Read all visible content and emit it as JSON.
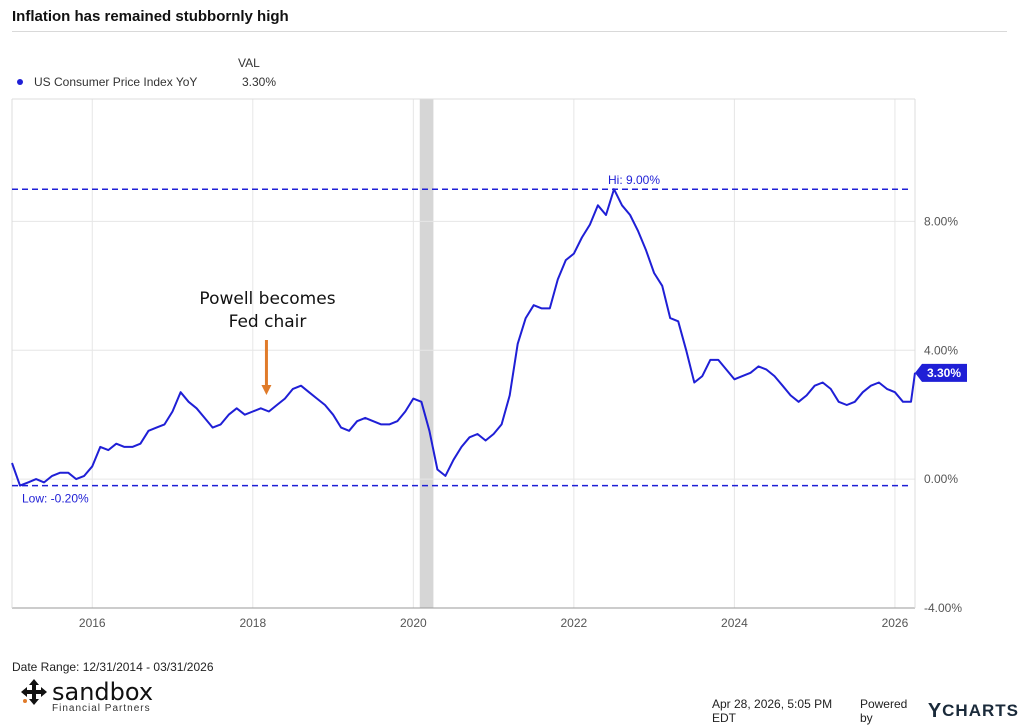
{
  "title": "Inflation has remained stubbornly high",
  "legend": {
    "header": "VAL",
    "series_label": "US Consumer Price Index YoY",
    "series_value": "3.30%"
  },
  "annotation": {
    "line1": "Powell becomes",
    "line2": "Fed chair"
  },
  "footer": {
    "date_range": "Date Range: 12/31/2014 - 03/31/2026",
    "timestamp": "Apr 28, 2026, 5:05 PM EDT",
    "powered_by": "Powered by",
    "ycharts_brand": "CHARTS",
    "ycharts_y": "Y",
    "logo_name": "sandbox",
    "logo_sub": "Financial Partners"
  },
  "colors": {
    "series": "#1f1fd6",
    "annotation_arrow": "#e07b2a",
    "recession": "#d6d6d6",
    "grid": "#e6e6e6"
  },
  "chart_data": {
    "type": "line",
    "title": "Inflation has remained stubbornly high",
    "xlabel": "",
    "ylabel": "",
    "xlim": [
      2015.0,
      2026.25
    ],
    "ylim": [
      -4.0,
      11.8
    ],
    "x_ticks": [
      2016,
      2018,
      2020,
      2022,
      2024,
      2026
    ],
    "x_tick_labels": [
      "2016",
      "2018",
      "2020",
      "2022",
      "2024",
      "2026"
    ],
    "y_ticks": [
      -4,
      0,
      4,
      8
    ],
    "y_tick_labels": [
      "-4.00%",
      "0.00%",
      "4.00%",
      "8.00%"
    ],
    "grid": true,
    "legend_position": "top-left",
    "hi_line": {
      "value": 9.0,
      "label": "Hi: 9.00%"
    },
    "low_line": {
      "value": -0.2,
      "label": "Low: -0.20%"
    },
    "last_value": {
      "value": 3.3,
      "label": "3.30%"
    },
    "recession_band": [
      2020.08,
      2020.25
    ],
    "annotation_x": 2018.17,
    "series": [
      {
        "name": "US Consumer Price Index YoY",
        "x": [
          2015.0,
          2015.1,
          2015.2,
          2015.3,
          2015.4,
          2015.5,
          2015.6,
          2015.7,
          2015.8,
          2015.9,
          2016.0,
          2016.1,
          2016.2,
          2016.3,
          2016.4,
          2016.5,
          2016.6,
          2016.7,
          2016.8,
          2016.9,
          2017.0,
          2017.1,
          2017.2,
          2017.3,
          2017.4,
          2017.5,
          2017.6,
          2017.7,
          2017.8,
          2017.9,
          2018.0,
          2018.1,
          2018.2,
          2018.3,
          2018.4,
          2018.5,
          2018.6,
          2018.7,
          2018.8,
          2018.9,
          2019.0,
          2019.1,
          2019.2,
          2019.3,
          2019.4,
          2019.5,
          2019.6,
          2019.7,
          2019.8,
          2019.9,
          2020.0,
          2020.1,
          2020.2,
          2020.3,
          2020.4,
          2020.5,
          2020.6,
          2020.7,
          2020.8,
          2020.9,
          2021.0,
          2021.1,
          2021.2,
          2021.3,
          2021.4,
          2021.5,
          2021.6,
          2021.7,
          2021.8,
          2021.9,
          2022.0,
          2022.1,
          2022.2,
          2022.3,
          2022.4,
          2022.5,
          2022.6,
          2022.7,
          2022.8,
          2022.9,
          2023.0,
          2023.1,
          2023.2,
          2023.3,
          2023.4,
          2023.5,
          2023.6,
          2023.7,
          2023.8,
          2023.9,
          2024.0,
          2024.1,
          2024.2,
          2024.3,
          2024.4,
          2024.5,
          2024.6,
          2024.7,
          2024.8,
          2024.9,
          2025.0,
          2025.1,
          2025.2,
          2025.3,
          2025.4,
          2025.5,
          2025.6,
          2025.7,
          2025.8,
          2025.9,
          2026.0,
          2026.1,
          2026.2,
          2026.25
        ],
        "values": [
          0.5,
          -0.2,
          -0.1,
          0.0,
          -0.1,
          0.1,
          0.2,
          0.2,
          0.0,
          0.1,
          0.4,
          1.0,
          0.9,
          1.1,
          1.0,
          1.0,
          1.1,
          1.5,
          1.6,
          1.7,
          2.1,
          2.7,
          2.4,
          2.2,
          1.9,
          1.6,
          1.7,
          2.0,
          2.2,
          2.0,
          2.1,
          2.2,
          2.1,
          2.3,
          2.5,
          2.8,
          2.9,
          2.7,
          2.5,
          2.3,
          2.0,
          1.6,
          1.5,
          1.8,
          1.9,
          1.8,
          1.7,
          1.7,
          1.8,
          2.1,
          2.5,
          2.4,
          1.5,
          0.3,
          0.1,
          0.6,
          1.0,
          1.3,
          1.4,
          1.2,
          1.4,
          1.7,
          2.6,
          4.2,
          5.0,
          5.4,
          5.3,
          5.3,
          6.2,
          6.8,
          7.0,
          7.5,
          7.9,
          8.5,
          8.2,
          9.0,
          8.5,
          8.2,
          7.7,
          7.1,
          6.4,
          6.0,
          5.0,
          4.9,
          4.0,
          3.0,
          3.2,
          3.7,
          3.7,
          3.4,
          3.1,
          3.2,
          3.3,
          3.5,
          3.4,
          3.2,
          2.9,
          2.6,
          2.4,
          2.6,
          2.9,
          3.0,
          2.8,
          2.4,
          2.3,
          2.4,
          2.7,
          2.9,
          3.0,
          2.8,
          2.7,
          2.4,
          2.4,
          3.3
        ]
      }
    ]
  }
}
